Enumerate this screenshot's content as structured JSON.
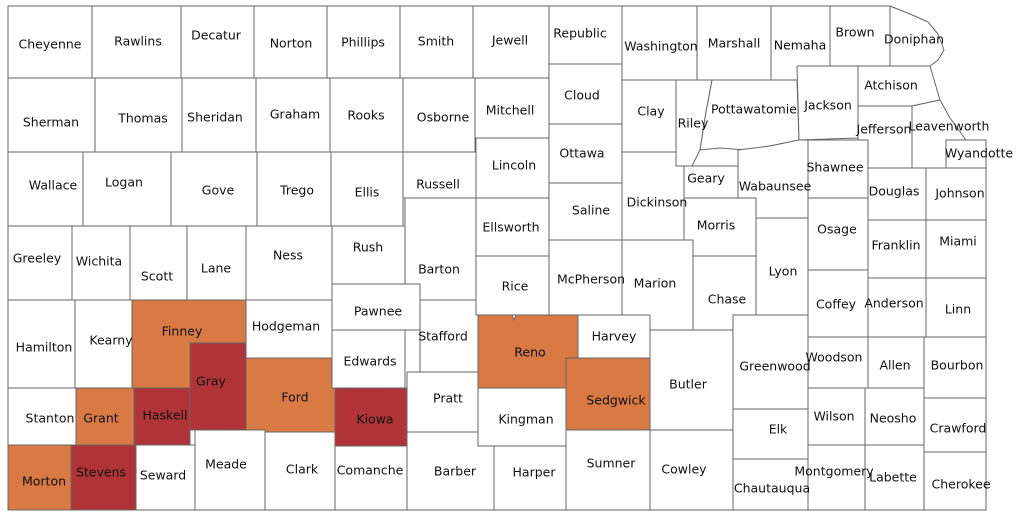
{
  "colors": {
    "none": "#ffffff",
    "orange": "#d97a45",
    "red": "#b03437",
    "border": "#666666"
  },
  "counties": [
    {
      "name": "Cheyenne",
      "level": "none"
    },
    {
      "name": "Rawlins",
      "level": "none"
    },
    {
      "name": "Decatur",
      "level": "none"
    },
    {
      "name": "Norton",
      "level": "none"
    },
    {
      "name": "Phillips",
      "level": "none"
    },
    {
      "name": "Smith",
      "level": "none"
    },
    {
      "name": "Jewell",
      "level": "none"
    },
    {
      "name": "Republic",
      "level": "none"
    },
    {
      "name": "Washington",
      "level": "none"
    },
    {
      "name": "Marshall",
      "level": "none"
    },
    {
      "name": "Nemaha",
      "level": "none"
    },
    {
      "name": "Brown",
      "level": "none"
    },
    {
      "name": "Doniphan",
      "level": "none"
    },
    {
      "name": "Sherman",
      "level": "none"
    },
    {
      "name": "Thomas",
      "level": "none"
    },
    {
      "name": "Sheridan",
      "level": "none"
    },
    {
      "name": "Graham",
      "level": "none"
    },
    {
      "name": "Rooks",
      "level": "none"
    },
    {
      "name": "Osborne",
      "level": "none"
    },
    {
      "name": "Mitchell",
      "level": "none"
    },
    {
      "name": "Cloud",
      "level": "none"
    },
    {
      "name": "Clay",
      "level": "none"
    },
    {
      "name": "Riley",
      "level": "none"
    },
    {
      "name": "Pottawatomie",
      "level": "none"
    },
    {
      "name": "Jackson",
      "level": "none"
    },
    {
      "name": "Atchison",
      "level": "none"
    },
    {
      "name": "Jefferson",
      "level": "none"
    },
    {
      "name": "Leavenworth",
      "level": "none"
    },
    {
      "name": "Wyandotte",
      "level": "none"
    },
    {
      "name": "Wallace",
      "level": "none"
    },
    {
      "name": "Logan",
      "level": "none"
    },
    {
      "name": "Gove",
      "level": "none"
    },
    {
      "name": "Trego",
      "level": "none"
    },
    {
      "name": "Ellis",
      "level": "none"
    },
    {
      "name": "Russell",
      "level": "none"
    },
    {
      "name": "Lincoln",
      "level": "none"
    },
    {
      "name": "Ottawa",
      "level": "none"
    },
    {
      "name": "Dickinson",
      "level": "none"
    },
    {
      "name": "Geary",
      "level": "none"
    },
    {
      "name": "Wabaunsee",
      "level": "none"
    },
    {
      "name": "Shawnee",
      "level": "none"
    },
    {
      "name": "Douglas",
      "level": "none"
    },
    {
      "name": "Johnson",
      "level": "none"
    },
    {
      "name": "Greeley",
      "level": "none"
    },
    {
      "name": "Wichita",
      "level": "none"
    },
    {
      "name": "Scott",
      "level": "none"
    },
    {
      "name": "Lane",
      "level": "none"
    },
    {
      "name": "Ness",
      "level": "none"
    },
    {
      "name": "Rush",
      "level": "none"
    },
    {
      "name": "Barton",
      "level": "none"
    },
    {
      "name": "Ellsworth",
      "level": "none"
    },
    {
      "name": "Saline",
      "level": "none"
    },
    {
      "name": "Morris",
      "level": "none"
    },
    {
      "name": "Osage",
      "level": "none"
    },
    {
      "name": "Franklin",
      "level": "none"
    },
    {
      "name": "Miami",
      "level": "none"
    },
    {
      "name": "Hamilton",
      "level": "none"
    },
    {
      "name": "Kearny",
      "level": "none"
    },
    {
      "name": "Finney",
      "level": "orange"
    },
    {
      "name": "Hodgeman",
      "level": "none"
    },
    {
      "name": "Pawnee",
      "level": "none"
    },
    {
      "name": "Stafford",
      "level": "none"
    },
    {
      "name": "Rice",
      "level": "none"
    },
    {
      "name": "McPherson",
      "level": "none"
    },
    {
      "name": "Marion",
      "level": "none"
    },
    {
      "name": "Chase",
      "level": "none"
    },
    {
      "name": "Lyon",
      "level": "none"
    },
    {
      "name": "Coffey",
      "level": "none"
    },
    {
      "name": "Anderson",
      "level": "none"
    },
    {
      "name": "Linn",
      "level": "none"
    },
    {
      "name": "Stanton",
      "level": "none"
    },
    {
      "name": "Grant",
      "level": "orange"
    },
    {
      "name": "Haskell",
      "level": "red"
    },
    {
      "name": "Gray",
      "level": "red"
    },
    {
      "name": "Ford",
      "level": "orange"
    },
    {
      "name": "Edwards",
      "level": "none"
    },
    {
      "name": "Kiowa",
      "level": "red"
    },
    {
      "name": "Pratt",
      "level": "none"
    },
    {
      "name": "Reno",
      "level": "orange"
    },
    {
      "name": "Harvey",
      "level": "none"
    },
    {
      "name": "Sedgwick",
      "level": "orange"
    },
    {
      "name": "Butler",
      "level": "none"
    },
    {
      "name": "Greenwood",
      "level": "none"
    },
    {
      "name": "Woodson",
      "level": "none"
    },
    {
      "name": "Allen",
      "level": "none"
    },
    {
      "name": "Bourbon",
      "level": "none"
    },
    {
      "name": "Morton",
      "level": "orange"
    },
    {
      "name": "Stevens",
      "level": "red"
    },
    {
      "name": "Seward",
      "level": "none"
    },
    {
      "name": "Meade",
      "level": "none"
    },
    {
      "name": "Clark",
      "level": "none"
    },
    {
      "name": "Comanche",
      "level": "none"
    },
    {
      "name": "Barber",
      "level": "none"
    },
    {
      "name": "Kingman",
      "level": "none"
    },
    {
      "name": "Harper",
      "level": "none"
    },
    {
      "name": "Sumner",
      "level": "none"
    },
    {
      "name": "Cowley",
      "level": "none"
    },
    {
      "name": "Elk",
      "level": "none"
    },
    {
      "name": "Chautauqua",
      "level": "none"
    },
    {
      "name": "Wilson",
      "level": "none"
    },
    {
      "name": "Montgomery",
      "level": "none"
    },
    {
      "name": "Neosho",
      "level": "none"
    },
    {
      "name": "Labette",
      "level": "none"
    },
    {
      "name": "Crawford",
      "level": "none"
    },
    {
      "name": "Cherokee",
      "level": "none"
    }
  ]
}
